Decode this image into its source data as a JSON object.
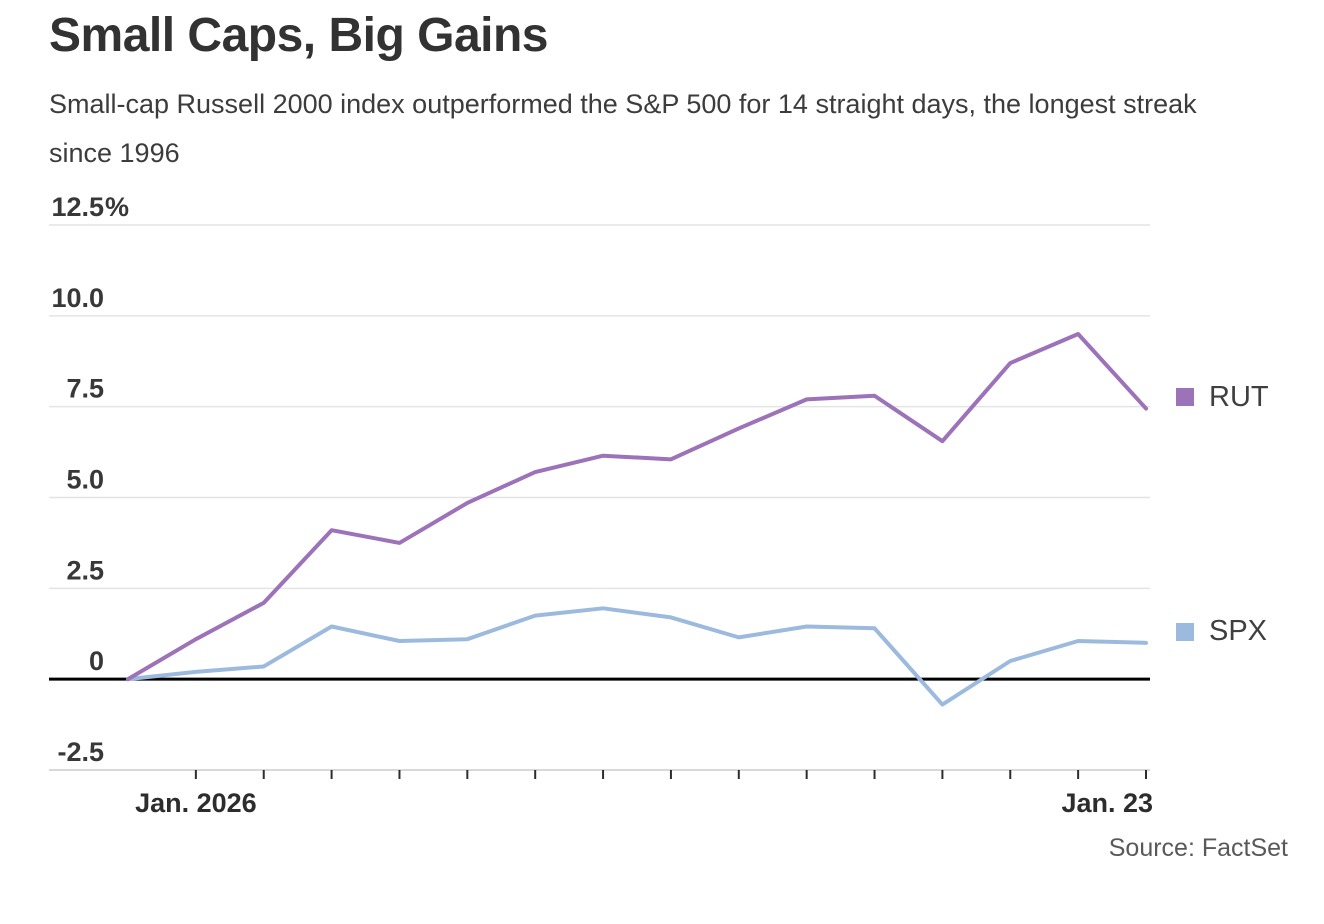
{
  "header": {
    "title": "Small Caps, Big Gains",
    "subtitle": "Small-cap Russell 2000 index outperformed the S&P 500 for 14 straight days, the longest streak since 1996"
  },
  "source": "Source: FactSet",
  "colors": {
    "rut_purple": "#9c72b8",
    "spx_blue": "#9cbade",
    "zero_line": "#000000",
    "gridline": "#e4e4e4",
    "bottom_axis": "#d9d9d9",
    "tick_mark": "#2d2d2d",
    "axis_label": "#383838",
    "title_text": "#323232"
  },
  "legend": {
    "items": [
      {
        "label": "RUT",
        "color": "#9c72b8"
      },
      {
        "label": "SPX",
        "color": "#9cbade"
      }
    ]
  },
  "chart_data": {
    "type": "line",
    "title": "Small Caps, Big Gains",
    "subtitle": "Small-cap Russell 2000 index outperformed the S&P 500 for 14 straight days, the longest streak since 1996",
    "x_axis": {
      "first_tick_label": "Jan. 2026",
      "last_tick_label": "Jan. 23",
      "description": "16 daily observations; baseline point then 15 ticked trading days"
    },
    "y_axis": {
      "unit": "% change",
      "ticks": [
        {
          "label": "12.5%",
          "value": 12.5
        },
        {
          "label": "10.0",
          "value": 10.0
        },
        {
          "label": "7.5",
          "value": 7.5
        },
        {
          "label": "5.0",
          "value": 5.0
        },
        {
          "label": "2.5",
          "value": 2.5
        },
        {
          "label": "0",
          "value": 0
        },
        {
          "label": "-2.5",
          "value": -2.5
        }
      ],
      "ylim": [
        -2.5,
        12.5
      ]
    },
    "grid": "horizontal",
    "legend_position": "right of line ends",
    "series": [
      {
        "name": "RUT",
        "color": "#9c72b8",
        "values": [
          0,
          1.1,
          2.1,
          4.1,
          3.75,
          4.85,
          5.7,
          6.15,
          6.05,
          6.9,
          7.7,
          7.8,
          6.55,
          8.7,
          9.5,
          7.45
        ]
      },
      {
        "name": "SPX",
        "color": "#9cbade",
        "values": [
          0,
          0.2,
          0.35,
          1.45,
          1.05,
          1.1,
          1.75,
          1.95,
          1.7,
          1.15,
          1.45,
          1.4,
          -0.7,
          0.5,
          1.05,
          1.0
        ]
      }
    ]
  }
}
